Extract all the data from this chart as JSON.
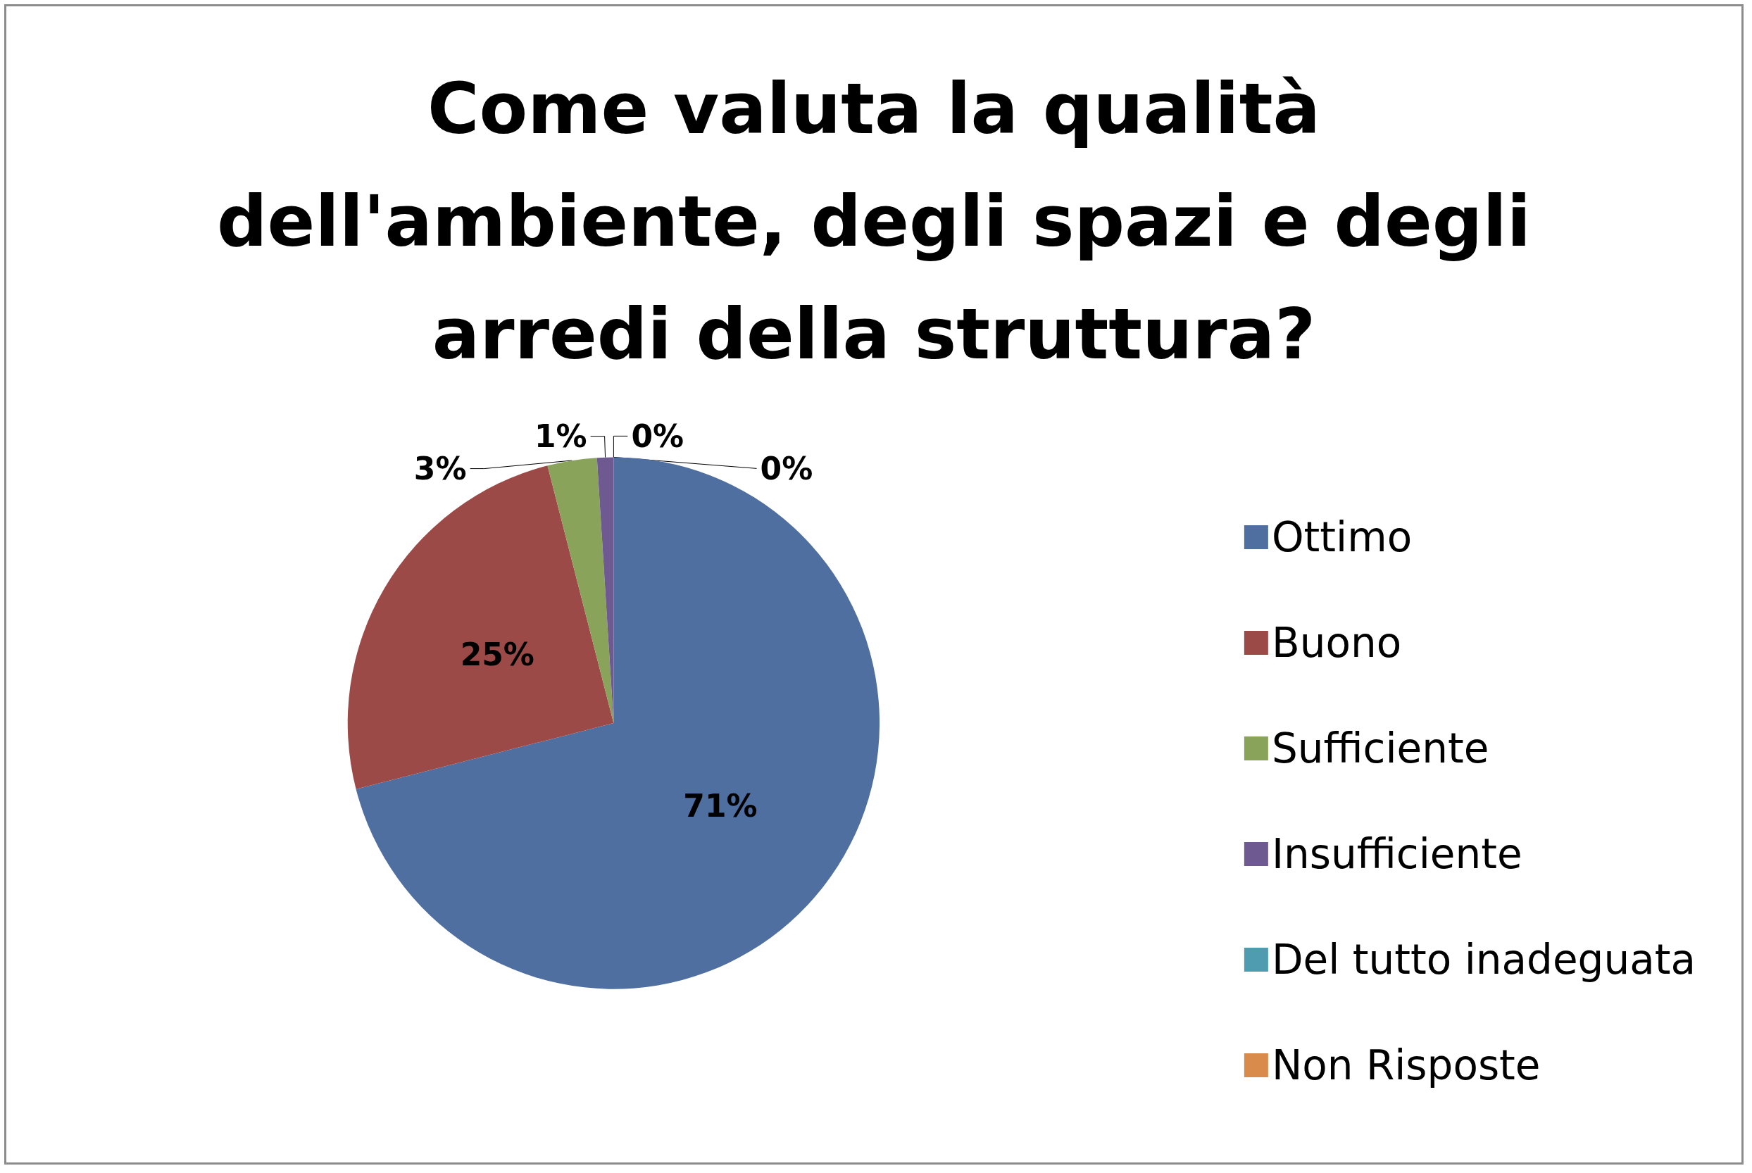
{
  "chart_data": {
    "type": "pie",
    "title": "Come valuta la qualità\ndell'ambiente, degli spazi e degli\narredi della struttura?",
    "categories": [
      "Ottimo",
      "Buono",
      "Sufficiente",
      "Insufficiente",
      "Del tutto inadeguata",
      "Non Risposte"
    ],
    "values": [
      71,
      25,
      3,
      1,
      0,
      0
    ],
    "value_labels": [
      "71%",
      "25%",
      "3%",
      "1%",
      "0%",
      "0%"
    ],
    "colors": [
      "#4f6fa0",
      "#9b4a47",
      "#8aa35a",
      "#6e5a91",
      "#4f9bb0",
      "#d88b4a"
    ],
    "legend": "right"
  }
}
